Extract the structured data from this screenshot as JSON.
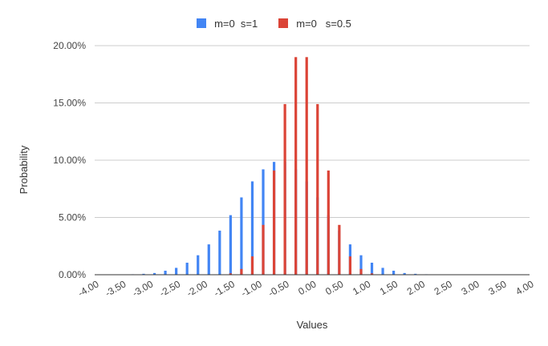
{
  "chart_data": {
    "type": "bar",
    "title": "",
    "xlabel": "Values",
    "ylabel": "Probability",
    "ylim": [
      0,
      0.2
    ],
    "yticks": [
      "0.00%",
      "5.00%",
      "10.00%",
      "15.00%",
      "20.00%"
    ],
    "xticks": [
      "-4.00",
      "-3.50",
      "-3.00",
      "-2.50",
      "-2.00",
      "-1.50",
      "-1.00",
      "-0.50",
      "0.00",
      "0.50",
      "1.00",
      "1.50",
      "2.00",
      "2.50",
      "3.00",
      "3.50",
      "4.00"
    ],
    "legend_position": "top",
    "grid": true,
    "series": [
      {
        "name": "m=0  s=1",
        "color": "#4285f4",
        "x": [
          -3.9,
          -3.7,
          -3.5,
          -3.3,
          -3.1,
          -2.9,
          -2.7,
          -2.5,
          -2.3,
          -2.1,
          -1.9,
          -1.7,
          -1.5,
          -1.3,
          -1.1,
          -0.9,
          -0.7,
          -0.5,
          -0.3,
          -0.1,
          0.1,
          0.3,
          0.5,
          0.7,
          0.9,
          1.1,
          1.3,
          1.5,
          1.7,
          1.9,
          2.1,
          2.3,
          2.5,
          2.7,
          2.9,
          3.1,
          3.3,
          3.5,
          3.7,
          3.9
        ],
        "values": [
          4e-05,
          8e-05,
          0.0002,
          0.0004,
          0.0008,
          0.0015,
          0.0035,
          0.006,
          0.0105,
          0.017,
          0.0265,
          0.0385,
          0.052,
          0.0675,
          0.0815,
          0.092,
          0.0985,
          0.0985,
          0.092,
          0.0815,
          0.0675,
          0.052,
          0.0385,
          0.0265,
          0.017,
          0.0105,
          0.006,
          0.0035,
          0.0015,
          0.0008,
          0.0004,
          0.0002,
          8e-05,
          4e-05,
          2e-05,
          1e-05,
          0.0,
          0.0,
          0.0,
          0.0
        ]
      },
      {
        "name": "m=0   s=0.5",
        "color": "#db4437",
        "x": [
          -1.5,
          -1.3,
          -1.1,
          -0.9,
          -0.7,
          -0.5,
          -0.3,
          -0.1,
          0.1,
          0.3,
          0.5,
          0.7,
          0.9,
          1.1,
          1.3,
          1.5
        ],
        "values": [
          0.0012,
          0.005,
          0.016,
          0.0435,
          0.091,
          0.149,
          0.19,
          0.19,
          0.149,
          0.091,
          0.0435,
          0.016,
          0.005,
          0.0012,
          0.0002,
          5e-05
        ]
      }
    ]
  }
}
